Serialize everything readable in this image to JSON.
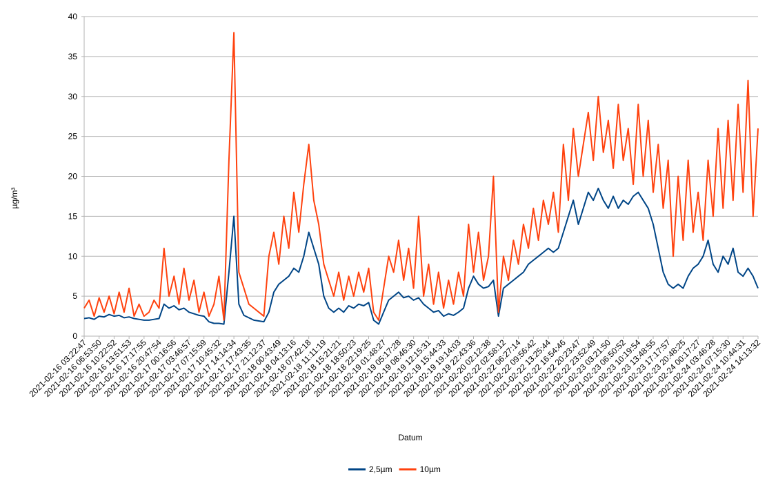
{
  "chart_data": {
    "type": "line",
    "y_label": "µg/m³",
    "x_label": "Datum",
    "categories": [
      "2021-02-16 03:22:47",
      null,
      null,
      "2021-02-16 06:53:50",
      null,
      null,
      "2021-02-16 10:22:52",
      null,
      null,
      "2021-02-16 13:51:53",
      null,
      null,
      "2021-02-16 17:17:55",
      null,
      null,
      "2021-02-16 20:47:54",
      null,
      null,
      "2021-02-17 00:16:56",
      null,
      null,
      "2021-02-17 03:46:57",
      null,
      null,
      "2021-02-17 07:15:59",
      null,
      null,
      "2021-02-17 10:45:32",
      null,
      null,
      "2021-02-17 14:14:34",
      null,
      null,
      "2021-02-17 17:43:35",
      null,
      null,
      "2021-02-17 21:12:37",
      null,
      null,
      "2021-02-18 00:43:49",
      null,
      null,
      "2021-02-18 04:13:16",
      null,
      null,
      "2021-02-18 07:42:18",
      null,
      null,
      "2021-02-18 11:11:19",
      null,
      null,
      "2021-02-18 15:21:21",
      null,
      null,
      "2021-02-18 18:50:23",
      null,
      null,
      "2021-02-18 22:19:25",
      null,
      null,
      "2021-02-19 01:48:27",
      null,
      null,
      "2021-02-19 05:17:28",
      null,
      null,
      "2021-02-19 08:46:30",
      null,
      null,
      "2021-02-19 12:15:31",
      null,
      null,
      "2021-02-19 15:44:33",
      null,
      null,
      "2021-02-19 19:14:03",
      null,
      null,
      "2021-02-19 22:43:36",
      null,
      null,
      "2021-02-20 02:12:38",
      null,
      null,
      "2021-02-22 02:58:12",
      null,
      null,
      "2021-02-22 06:27:14",
      null,
      null,
      "2021-02-22 09:56:42",
      null,
      null,
      "2021-02-22 13:25:44",
      null,
      null,
      "2021-02-22 16:54:46",
      null,
      null,
      "2021-02-22 20:23:47",
      null,
      null,
      "2021-02-22 23:52:49",
      null,
      null,
      "2021-02-23 03:21:50",
      null,
      null,
      "2021-02-23 06:50:52",
      null,
      null,
      "2021-02-23 10:19:54",
      null,
      null,
      "2021-02-23 13:48:55",
      null,
      null,
      "2021-02-23 17:17:57",
      null,
      null,
      "2021-02-23 20:48:25",
      null,
      null,
      "2021-02-24 00:17:27",
      null,
      null,
      "2021-02-24 03:46:28",
      null,
      null,
      "2021-02-24 07:15:30",
      null,
      null,
      "2021-02-24 10:44:31",
      null,
      null,
      "2021-02-24 14:13:32"
    ],
    "series": [
      {
        "name": "2,5µm",
        "color": "#004586",
        "values": [
          2.2,
          2.3,
          2.1,
          2.5,
          2.4,
          2.7,
          2.5,
          2.6,
          2.3,
          2.4,
          2.2,
          2.1,
          2.0,
          2.0,
          2.1,
          2.2,
          4,
          3.5,
          3.8,
          3.3,
          3.5,
          3.0,
          2.8,
          2.6,
          2.5,
          1.8,
          1.6,
          1.6,
          1.5,
          8,
          15,
          4,
          2.6,
          2.3,
          2.0,
          1.9,
          1.8,
          3,
          5.5,
          6.5,
          7,
          7.5,
          8.5,
          8,
          10,
          13,
          11,
          9,
          5,
          3.5,
          3,
          3.5,
          3,
          3.8,
          3.5,
          4,
          3.8,
          4.2,
          2,
          1.5,
          3,
          4.5,
          5,
          5.5,
          4.8,
          5,
          4.5,
          4.8,
          4,
          3.5,
          3,
          3.2,
          2.5,
          2.8,
          2.6,
          3,
          3.5,
          6,
          7.5,
          6.5,
          6,
          6.2,
          7,
          2.5,
          6,
          6.5,
          7,
          7.5,
          8,
          9,
          9.5,
          10,
          10.5,
          11,
          10.5,
          11,
          13,
          15,
          17,
          14,
          16,
          18,
          17,
          18.5,
          17,
          16,
          17.5,
          16,
          17,
          16.5,
          17.5,
          18,
          17,
          16,
          14,
          11,
          8,
          6.5,
          6,
          6.5,
          6,
          7.5,
          8.5,
          9,
          10,
          12,
          9,
          8,
          10,
          9,
          11,
          8,
          7.5,
          8.5,
          7.5,
          6
        ]
      },
      {
        "name": "10µm",
        "color": "#ff420e",
        "values": [
          3.5,
          4.5,
          2.5,
          4.8,
          3,
          5,
          2.8,
          5.5,
          3,
          6,
          2.5,
          4,
          2.5,
          3,
          4.5,
          3.5,
          11,
          5,
          7.5,
          4,
          8.5,
          4.5,
          7,
          3,
          5.5,
          2.5,
          4,
          7.5,
          2,
          22,
          38,
          8,
          6,
          4,
          3.5,
          3,
          2.5,
          10,
          13,
          9,
          15,
          11,
          18,
          13,
          19,
          24,
          17,
          14,
          9,
          7,
          5,
          8,
          4.5,
          7.5,
          5,
          8,
          5.5,
          8.5,
          3,
          2,
          6,
          10,
          8,
          12,
          7,
          11,
          6,
          15,
          5,
          9,
          4,
          8,
          3.5,
          7,
          4,
          8,
          5,
          14,
          8,
          13,
          7,
          10,
          20,
          3,
          10,
          7,
          12,
          9,
          14,
          11,
          16,
          12,
          17,
          14,
          18,
          13,
          24,
          17,
          26,
          20,
          24,
          28,
          22,
          30,
          23,
          27,
          21,
          29,
          22,
          26,
          19,
          29,
          20,
          27,
          18,
          24,
          16,
          22,
          10,
          20,
          12,
          22,
          13,
          18,
          12,
          22,
          15,
          26,
          16,
          27,
          17,
          29,
          18,
          32,
          15,
          26
        ]
      }
    ],
    "ylim": [
      0,
      40
    ],
    "yticks": [
      0,
      5,
      10,
      15,
      20,
      25,
      30,
      35,
      40
    ],
    "grid": true,
    "legend": "bottom"
  }
}
